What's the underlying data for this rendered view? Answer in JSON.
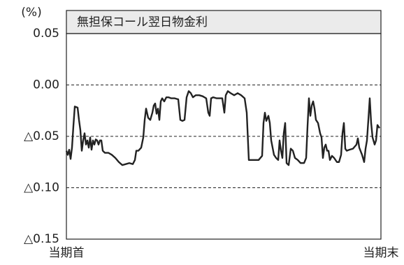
{
  "chart_data": {
    "type": "line",
    "title": "無担保コール翌日物金利",
    "y_label": "(%)",
    "color": "#222222",
    "grid": true,
    "xlim": [
      0,
      450
    ],
    "xticks": [
      {
        "value": 0,
        "label": "当期首"
      },
      {
        "value": 450,
        "label": "当期末"
      }
    ],
    "ylim": [
      -0.15,
      0.05
    ],
    "yticks": [
      {
        "value": -0.15,
        "label": "△0.15"
      },
      {
        "value": -0.1,
        "label": "△0.10"
      },
      {
        "value": -0.05,
        "label": "△0.05"
      },
      {
        "value": 0,
        "label": "0.00"
      },
      0.05
    ],
    "x": [
      0,
      2,
      4,
      6,
      8,
      10,
      12,
      16,
      18,
      20,
      22,
      24,
      26,
      28,
      30,
      32,
      34,
      36,
      38,
      40,
      42,
      44,
      46,
      48,
      50,
      52,
      55,
      60,
      65,
      70,
      75,
      80,
      85,
      90,
      95,
      98,
      100,
      103,
      107,
      110,
      112,
      114,
      117,
      120,
      123,
      125,
      127,
      129,
      131,
      133,
      135,
      137,
      140,
      143,
      146,
      150,
      155,
      160,
      163,
      166,
      169,
      172,
      175,
      178,
      181,
      185,
      190,
      195,
      200,
      203,
      205,
      207,
      210,
      215,
      220,
      223,
      226,
      228,
      231,
      235,
      240,
      245,
      250,
      255,
      258,
      261,
      265,
      270,
      275,
      280,
      282,
      284,
      286,
      289,
      291,
      293,
      295,
      297,
      300,
      303,
      305,
      307,
      309,
      311,
      313,
      315,
      318,
      321,
      324,
      327,
      331,
      335,
      340,
      343,
      345,
      347,
      349,
      351,
      353,
      355,
      357,
      360,
      363,
      365,
      367,
      369,
      371,
      373,
      375,
      377,
      380,
      383,
      387,
      390,
      393,
      395,
      397,
      399,
      401,
      405,
      410,
      415,
      417,
      419,
      423,
      426,
      428,
      430,
      432,
      434,
      436,
      438,
      441,
      443,
      445,
      448
    ],
    "values": [
      -0.064,
      -0.068,
      -0.063,
      -0.072,
      -0.061,
      -0.04,
      -0.021,
      -0.022,
      -0.034,
      -0.044,
      -0.064,
      -0.054,
      -0.047,
      -0.058,
      -0.054,
      -0.061,
      -0.051,
      -0.063,
      -0.054,
      -0.058,
      -0.053,
      -0.054,
      -0.058,
      -0.054,
      -0.054,
      -0.064,
      -0.066,
      -0.066,
      -0.068,
      -0.071,
      -0.075,
      -0.078,
      -0.077,
      -0.076,
      -0.077,
      -0.073,
      -0.064,
      -0.064,
      -0.061,
      -0.051,
      -0.034,
      -0.023,
      -0.032,
      -0.034,
      -0.027,
      -0.02,
      -0.018,
      -0.028,
      -0.023,
      -0.034,
      -0.016,
      -0.013,
      -0.016,
      -0.012,
      -0.012,
      -0.013,
      -0.013,
      -0.014,
      -0.034,
      -0.035,
      -0.034,
      -0.012,
      -0.006,
      -0.008,
      -0.012,
      -0.01,
      -0.01,
      -0.011,
      -0.013,
      -0.027,
      -0.03,
      -0.013,
      -0.012,
      -0.013,
      -0.013,
      -0.013,
      -0.027,
      -0.01,
      -0.006,
      -0.008,
      -0.01,
      -0.008,
      -0.01,
      -0.013,
      -0.027,
      -0.073,
      -0.073,
      -0.073,
      -0.073,
      -0.069,
      -0.037,
      -0.027,
      -0.035,
      -0.03,
      -0.037,
      -0.054,
      -0.061,
      -0.068,
      -0.071,
      -0.073,
      -0.054,
      -0.064,
      -0.071,
      -0.047,
      -0.037,
      -0.076,
      -0.078,
      -0.062,
      -0.064,
      -0.071,
      -0.073,
      -0.076,
      -0.076,
      -0.071,
      -0.04,
      -0.013,
      -0.03,
      -0.02,
      -0.016,
      -0.023,
      -0.034,
      -0.037,
      -0.047,
      -0.051,
      -0.071,
      -0.061,
      -0.058,
      -0.064,
      -0.064,
      -0.073,
      -0.069,
      -0.071,
      -0.075,
      -0.075,
      -0.068,
      -0.047,
      -0.037,
      -0.062,
      -0.064,
      -0.063,
      -0.062,
      -0.058,
      -0.052,
      -0.061,
      -0.068,
      -0.075,
      -0.062,
      -0.054,
      -0.034,
      -0.013,
      -0.037,
      -0.051,
      -0.058,
      -0.054,
      -0.039,
      -0.042
    ]
  }
}
